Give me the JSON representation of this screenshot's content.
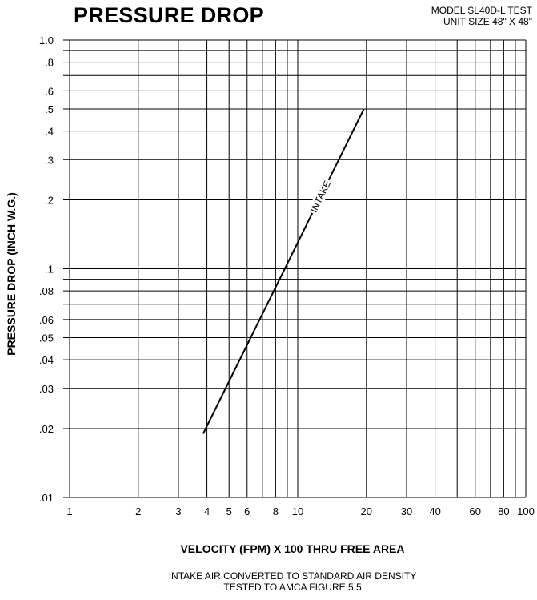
{
  "header": {
    "title": "PRESSURE DROP",
    "model_line1": "MODEL SL40D-L TEST",
    "model_line2": "UNIT SIZE 48\" X 48\""
  },
  "notes": {
    "line1": "INTAKE AIR CONVERTED TO STANDARD AIR DENSITY",
    "line2": "TESTED TO AMCA FIGURE 5.5"
  },
  "chart_data": {
    "type": "line",
    "title": "PRESSURE DROP",
    "xlabel": "VELOCITY (FPM) X 100 THRU FREE AREA",
    "ylabel": "PRESSURE DROP (INCH W.G.)",
    "xscale": "log",
    "yscale": "log",
    "xlim": [
      1,
      100
    ],
    "ylim": [
      0.01,
      1.0
    ],
    "grid": true,
    "x_ticks": [
      1,
      2,
      3,
      4,
      5,
      6,
      8,
      10,
      20,
      30,
      40,
      60,
      80,
      100
    ],
    "x_tick_labels": [
      "1",
      "2",
      "3",
      "4",
      "5",
      "6",
      "8",
      "10",
      "20",
      "30",
      "40",
      "60",
      "80",
      "100"
    ],
    "x_gridlines": [
      1,
      2,
      3,
      4,
      5,
      6,
      7,
      8,
      9,
      10,
      20,
      30,
      40,
      50,
      60,
      70,
      80,
      90,
      100
    ],
    "y_ticks": [
      0.01,
      0.02,
      0.03,
      0.04,
      0.05,
      0.06,
      0.08,
      0.1,
      0.2,
      0.3,
      0.4,
      0.5,
      0.6,
      0.8,
      1.0
    ],
    "y_tick_labels": [
      ".01",
      ".02",
      ".03",
      ".04",
      ".05",
      ".06",
      ".08",
      ".1",
      ".2",
      ".3",
      ".4",
      ".5",
      ".6",
      ".8",
      "1.0"
    ],
    "y_gridlines": [
      0.01,
      0.02,
      0.03,
      0.04,
      0.05,
      0.06,
      0.07,
      0.08,
      0.09,
      0.1,
      0.2,
      0.3,
      0.4,
      0.5,
      0.6,
      0.7,
      0.8,
      0.9,
      1.0
    ],
    "series": [
      {
        "name": "INTAKE",
        "x": [
          3.85,
          19.5
        ],
        "y": [
          0.019,
          0.5
        ]
      }
    ]
  }
}
